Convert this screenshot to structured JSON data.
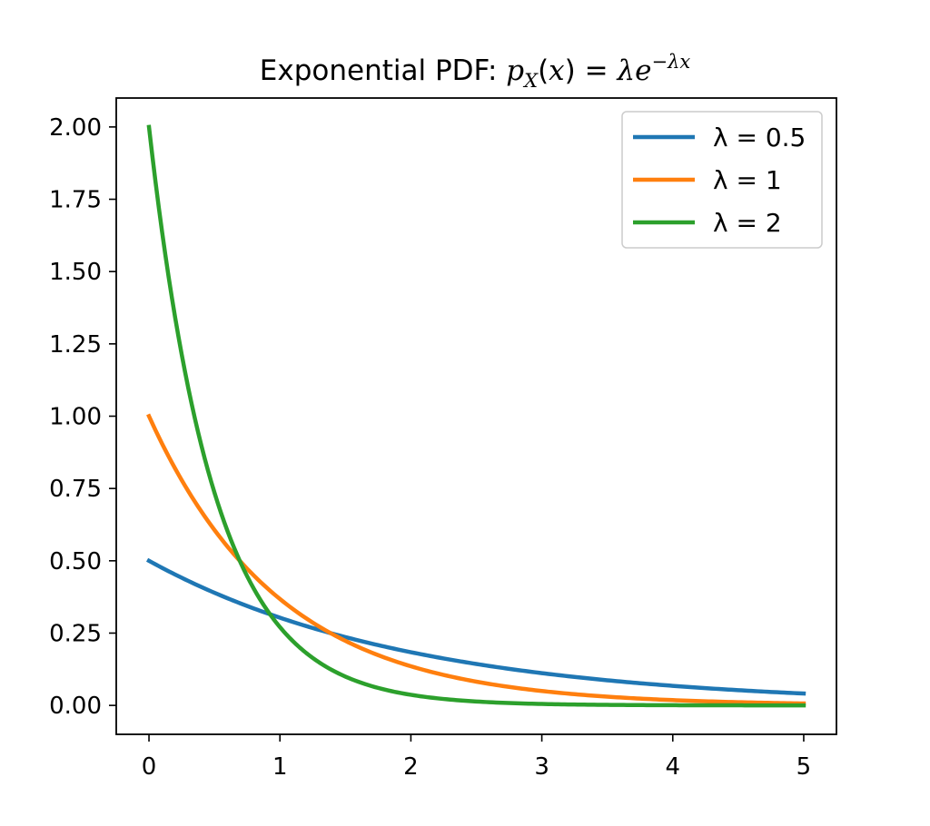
{
  "chart_data": {
    "type": "line",
    "title_prefix": "Exponential PDF: ",
    "title_math": {
      "p": "p",
      "sub": "X",
      "open": "(",
      "x": "x",
      "close": ")",
      "eq": " = ",
      "lambda": "λ",
      "e": "e",
      "sup": "−λx"
    },
    "xlabel": "",
    "ylabel": "",
    "xlim": [
      -0.25,
      5.25
    ],
    "ylim": [
      -0.1,
      2.1
    ],
    "x_ticks": [
      0,
      1,
      2,
      3,
      4,
      5
    ],
    "x_tick_labels": [
      "0",
      "1",
      "2",
      "3",
      "4",
      "5"
    ],
    "y_ticks": [
      0,
      0.25,
      0.5,
      0.75,
      1.0,
      1.25,
      1.5,
      1.75,
      2.0
    ],
    "y_tick_labels": [
      "0.00",
      "0.25",
      "0.50",
      "0.75",
      "1.00",
      "1.25",
      "1.50",
      "1.75",
      "2.00"
    ],
    "grid": false,
    "legend_position": "top-right",
    "x": [
      0,
      0.25,
      0.5,
      0.75,
      1,
      1.25,
      1.5,
      1.75,
      2,
      2.25,
      2.5,
      2.75,
      3,
      3.25,
      3.5,
      3.75,
      4,
      4.25,
      4.5,
      4.75,
      5
    ],
    "series": [
      {
        "name": "λ = 0.5",
        "lambda_label": "λ = 0.5",
        "color": "#1f77b4",
        "values": [
          0.5,
          0.441,
          0.389,
          0.344,
          0.303,
          0.268,
          0.236,
          0.208,
          0.184,
          0.162,
          0.143,
          0.126,
          0.112,
          0.098,
          0.087,
          0.077,
          0.068,
          0.06,
          0.053,
          0.047,
          0.041
        ]
      },
      {
        "name": "λ = 1",
        "lambda_label": "λ = 1",
        "color": "#ff7f0e",
        "values": [
          1.0,
          0.779,
          0.607,
          0.472,
          0.368,
          0.287,
          0.223,
          0.174,
          0.135,
          0.105,
          0.082,
          0.064,
          0.05,
          0.039,
          0.03,
          0.024,
          0.018,
          0.014,
          0.011,
          0.009,
          0.007
        ]
      },
      {
        "name": "λ = 2",
        "lambda_label": "λ = 2",
        "color": "#2ca02c",
        "values": [
          2.0,
          1.213,
          0.736,
          0.446,
          0.271,
          0.164,
          0.1,
          0.06,
          0.037,
          0.022,
          0.013,
          0.008,
          0.005,
          0.003,
          0.002,
          0.001,
          0.001,
          0.0,
          0.0,
          0.0,
          0.0
        ]
      }
    ]
  }
}
